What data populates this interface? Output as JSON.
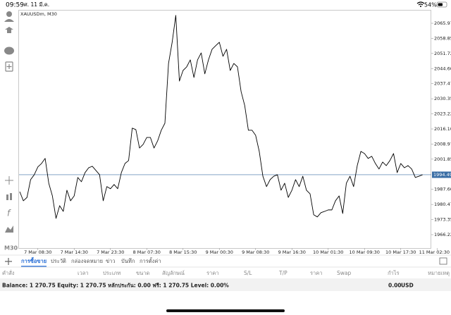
{
  "status_bar": {
    "time": "09:59",
    "date": "ศ. 11 มี.ค.",
    "battery": "54%"
  },
  "sidebar": {
    "timeframe": "M30"
  },
  "chart_data": {
    "type": "line",
    "title": "XAUUSDm, M30",
    "color": "#000000",
    "grid": false,
    "categories": [
      null,
      null,
      null,
      null,
      null,
      "7 Mar 08:30",
      null,
      null,
      null,
      null,
      null,
      null,
      null,
      null,
      null,
      "7 Mar 14:30",
      null,
      null,
      null,
      null,
      null,
      null,
      null,
      null,
      null,
      "7 Mar 23:30",
      null,
      null,
      null,
      null,
      null,
      null,
      null,
      null,
      null,
      "8 Mar 07:30",
      null,
      null,
      null,
      null,
      null,
      null,
      null,
      null,
      null,
      "8 Mar 15:30",
      null,
      null,
      null,
      null,
      null,
      null,
      null,
      null,
      null,
      "9 Mar 00:30",
      null,
      null,
      null,
      null,
      null,
      null,
      null,
      null,
      null,
      "9 Mar 08:30",
      null,
      null,
      null,
      null,
      null,
      null,
      null,
      null,
      null,
      "9 Mar 16:30",
      null,
      null,
      null,
      null,
      null,
      null,
      null,
      null,
      null,
      "10 Mar 01:30",
      null,
      null,
      null,
      null,
      null,
      null,
      null,
      null,
      null,
      "10 Mar 09:30",
      null,
      null,
      null,
      null,
      null,
      null,
      null,
      null,
      null,
      "10 Mar 17:30",
      null,
      null,
      null,
      null,
      null,
      null,
      null,
      null,
      null,
      "11 Mar 02:30"
    ],
    "values": [
      1986.5,
      1982.2,
      1983.8,
      1992.2,
      1994.5,
      1998.2,
      1999.8,
      2002.2,
      1990.5,
      1984.5,
      1973.9,
      1979.9,
      1977.2,
      1987.2,
      1982.2,
      1984.5,
      1993.2,
      1991.2,
      1995.5,
      1997.8,
      1998.5,
      1996.5,
      1994.5,
      1982.2,
      1988.9,
      1987.9,
      1989.9,
      1987.9,
      1995.5,
      1999.8,
      2001.2,
      2016.5,
      2015.8,
      2007.1,
      2008.8,
      2012.1,
      2012.1,
      2007.1,
      2010.5,
      2015.5,
      2018.8,
      2047.0,
      2057.0,
      2069.7,
      2038.7,
      2043.7,
      2045.4,
      2048.7,
      2040.4,
      2048.7,
      2052.0,
      2042.1,
      2048.7,
      2053.7,
      2055.4,
      2057.0,
      2050.4,
      2053.7,
      2043.7,
      2047.0,
      2045.4,
      2033.7,
      2027.1,
      2015.5,
      2015.5,
      2013.1,
      2005.5,
      1993.8,
      1988.9,
      1992.2,
      1993.8,
      1994.5,
      1987.2,
      1990.5,
      1983.8,
      1987.2,
      1992.2,
      1988.9,
      1993.8,
      1987.2,
      1985.5,
      1975.6,
      1974.6,
      1976.6,
      1977.2,
      1977.9,
      1977.9,
      1982.2,
      1984.5,
      1976.2,
      1990.5,
      1993.8,
      1988.9,
      1998.8,
      2005.5,
      2004.5,
      2002.2,
      2003.2,
      1999.8,
      1997.2,
      2000.5,
      1998.8,
      2001.2,
      2004.5,
      1995.5,
      1999.8,
      1997.8,
      1998.8,
      1997.2,
      1993.2,
      1993.8,
      1994.5,
      null,
      null,
      null,
      null
    ],
    "ylim": [
      1959.9,
      2072.3
    ],
    "yticks": [
      2065.975,
      {
        "value": 2058.85,
        "label": "2058.850"
      },
      2051.725,
      {
        "value": 2044.6,
        "label": "2044.600"
      },
      2037.475,
      {
        "value": 2030.35,
        "label": "2030.350"
      },
      2023.225,
      {
        "value": 2016.1,
        "label": "2016.100"
      },
      2008.975,
      {
        "value": 2001.85,
        "label": "2001.850"
      },
      {
        "value": 1987.6,
        "label": "1987.600"
      },
      1980.475,
      {
        "value": 1973.35,
        "label": "1973.350"
      },
      1966.225
    ],
    "last_price": 1994.493,
    "last_price_color": "#3a6ea5"
  },
  "tabs": [
    "การซื้อขาย",
    "ประวัติ",
    "กล่องจดหมาย",
    "ข่าว",
    "บันทึก",
    "การตั้งค่า"
  ],
  "table": {
    "headers": [
      "คำสั่ง",
      "เวลา",
      "ประเภท",
      "ขนาด",
      "สัญลักษณ์",
      "ราคา",
      "S/L",
      "T/P",
      "ราคา",
      "Swap",
      "กำไร",
      "หมายเหตุ"
    ]
  },
  "account": {
    "summary": "Balance: 1 270.75 Equity: 1 270.75 หลักประกัน: 0.00 ฟรี: 1 270.75 Level: 0.00%",
    "profit": "0.00",
    "currency": "USD"
  }
}
